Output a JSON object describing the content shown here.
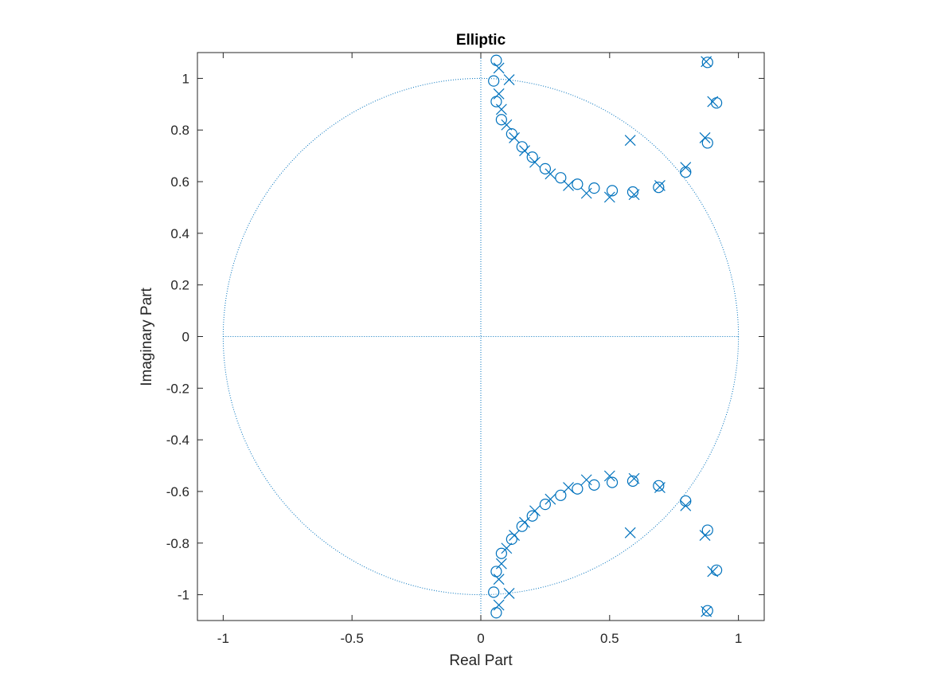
{
  "chart_data": {
    "type": "scatter",
    "title": "Elliptic",
    "xlabel": "Real Part",
    "ylabel": "Imaginary Part",
    "xlim": [
      -1.1,
      1.1
    ],
    "ylim": [
      -1.1,
      1.1
    ],
    "x_ticks": [
      -1,
      -0.5,
      0,
      0.5,
      1
    ],
    "x_tick_labels": [
      "-1",
      "-0.5",
      "0",
      "0.5",
      "1"
    ],
    "y_ticks": [
      1,
      0.8,
      0.6,
      0.4,
      0.2,
      0,
      -0.2,
      -0.4,
      -0.6,
      -0.8,
      -1
    ],
    "y_tick_labels": [
      "1",
      "0.8",
      "0.6",
      "0.4",
      "0.2",
      "0",
      "-0.2",
      "-0.4",
      "-0.6",
      "-0.8",
      "-1"
    ],
    "unit_circle": true,
    "grid": false,
    "color": "#0072BD",
    "zeros_upper": [
      [
        0.06,
        1.07
      ],
      [
        0.05,
        0.99
      ],
      [
        0.06,
        0.91
      ],
      [
        0.08,
        0.84
      ],
      [
        0.12,
        0.785
      ],
      [
        0.16,
        0.735
      ],
      [
        0.2,
        0.695
      ],
      [
        0.25,
        0.65
      ],
      [
        0.31,
        0.615
      ],
      [
        0.375,
        0.59
      ],
      [
        0.44,
        0.575
      ],
      [
        0.51,
        0.565
      ],
      [
        0.59,
        0.56
      ],
      [
        0.69,
        0.578
      ],
      [
        0.795,
        0.637
      ],
      [
        0.88,
        0.75
      ],
      [
        0.915,
        0.905
      ],
      [
        0.88,
        1.062
      ]
    ],
    "poles_upper": [
      [
        0.07,
        1.04
      ],
      [
        0.11,
        0.995
      ],
      [
        0.07,
        0.94
      ],
      [
        0.08,
        0.88
      ],
      [
        0.1,
        0.82
      ],
      [
        0.13,
        0.77
      ],
      [
        0.17,
        0.72
      ],
      [
        0.21,
        0.675
      ],
      [
        0.27,
        0.63
      ],
      [
        0.34,
        0.585
      ],
      [
        0.41,
        0.555
      ],
      [
        0.5,
        0.54
      ],
      [
        0.595,
        0.55
      ],
      [
        0.58,
        0.76
      ],
      [
        0.695,
        0.585
      ],
      [
        0.795,
        0.655
      ],
      [
        0.87,
        0.77
      ],
      [
        0.9,
        0.91
      ],
      [
        0.875,
        1.065
      ]
    ],
    "conjugate_symmetric": true
  }
}
